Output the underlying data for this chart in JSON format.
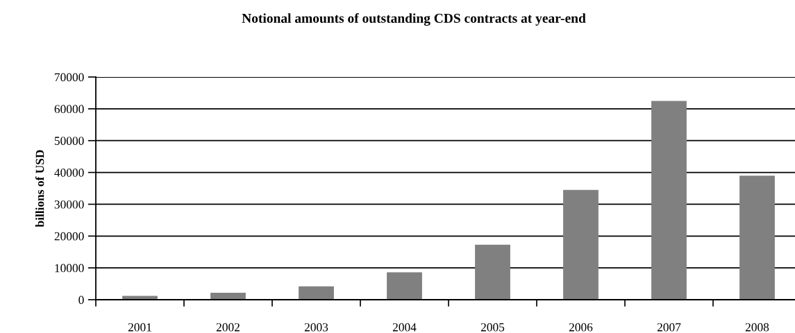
{
  "chart_data": {
    "type": "bar",
    "title": "Notional amounts of outstanding CDS contracts at year-end",
    "ylabel": "billions of USD",
    "categories": [
      "2001",
      "2002",
      "2003",
      "2004",
      "2005",
      "2006",
      "2007",
      "2008"
    ],
    "values": [
      1200,
      2200,
      4200,
      8600,
      17300,
      34500,
      62500,
      39000
    ],
    "color": "#808080",
    "ylim": [
      0,
      70000
    ],
    "yticks": [
      0,
      10000,
      20000,
      30000,
      40000,
      50000,
      60000,
      70000
    ],
    "grid": "y"
  }
}
